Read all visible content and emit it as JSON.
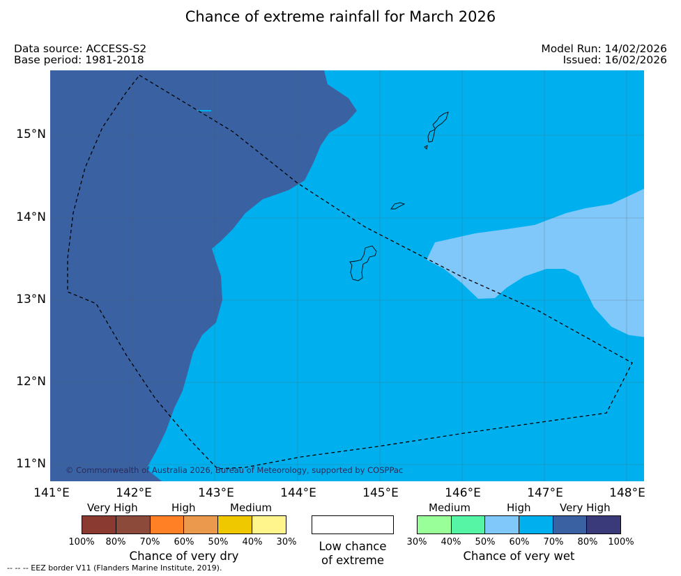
{
  "title": "Chance of extreme rainfall for March 2026",
  "header": {
    "data_source": "Data source: ACCESS-S2",
    "base_period": "Base period: 1981-2018",
    "model_run": "Model Run: 14/02/2026",
    "issued": "Issued: 16/02/2026"
  },
  "map": {
    "x_ticks": [
      "141°E",
      "142°E",
      "143°E",
      "144°E",
      "145°E",
      "146°E",
      "147°E",
      "148°E"
    ],
    "y_ticks": [
      "15°N",
      "14°N",
      "13°N",
      "12°N",
      "11°N"
    ],
    "copyright": "© Commonwealth of Australia 2026, Bureau of Meteorology, supported by COSPPac",
    "colors": {
      "very_high_wet": "#3a62a3",
      "high_wet": "#00b0ee",
      "medium_wet": "#80c8fa",
      "ocean_outline": "#000000"
    }
  },
  "legend": {
    "dry": {
      "levels": [
        "Very High",
        "High",
        "Medium"
      ],
      "percents": [
        "100%",
        "80%",
        "70%",
        "60%",
        "50%",
        "40%",
        "30%"
      ],
      "colors": [
        "#8b3a32",
        "#8b4a3a",
        "#ff8025",
        "#eb9a4d",
        "#f0c800",
        "#fff58c"
      ],
      "title": "Chance of very dry"
    },
    "low": {
      "title_line1": "Low chance",
      "title_line2": "of extreme",
      "color": "#ffffff"
    },
    "wet": {
      "levels": [
        "Medium",
        "High",
        "Very High"
      ],
      "percents": [
        "30%",
        "40%",
        "50%",
        "60%",
        "70%",
        "80%",
        "100%"
      ],
      "colors": [
        "#99ff99",
        "#55f5a5",
        "#80c8fa",
        "#00b0ee",
        "#3a62a3",
        "#3a3a7a"
      ],
      "title": "Chance of very wet"
    }
  },
  "footnote": "--  --  -- EEZ border V11 (Flanders Marine Institute, 2019)."
}
